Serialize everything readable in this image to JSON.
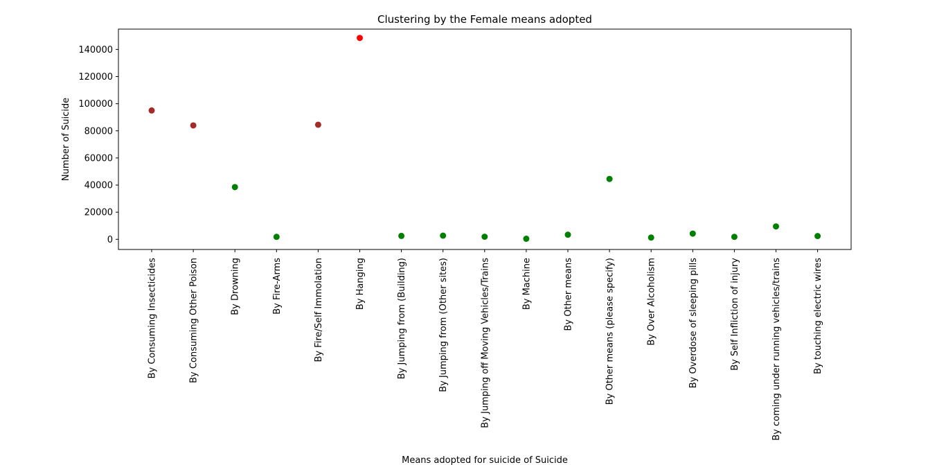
{
  "chart_data": {
    "type": "scatter",
    "title": "Clustering by the Female means adopted",
    "xlabel": "Means adopted for suicide of Suicide",
    "ylabel": "Number of Suicide",
    "ylim": [
      -7500,
      155000
    ],
    "yticks": [
      0,
      20000,
      40000,
      60000,
      80000,
      100000,
      120000,
      140000
    ],
    "grid": false,
    "categories": [
      "By Consuming Insecticides",
      "By Consuming Other Poison",
      "By Drowning",
      "By Fire-Arms",
      "By Fire/Self Immolation",
      "By Hanging",
      "By Jumping from (Building)",
      "By Jumping from (Other sites)",
      "By Jumping off Moving Vehicles/Trains",
      "By Machine",
      "By Other means",
      "By Other means (please specify)",
      "By Over Alcoholism",
      "By Overdose of sleeping pills",
      "By Self Infliction of injury",
      "By coming under running vehicles/trains",
      "By touching electric wires"
    ],
    "values": [
      95000,
      84000,
      38500,
      1800,
      84500,
      148500,
      2500,
      2700,
      1900,
      400,
      3400,
      44500,
      1300,
      4200,
      1800,
      9500,
      2400
    ],
    "point_colors": [
      "#a52a2a",
      "#a52a2a",
      "#008000",
      "#008000",
      "#a52a2a",
      "#ff0000",
      "#008000",
      "#008000",
      "#008000",
      "#008000",
      "#008000",
      "#008000",
      "#008000",
      "#008000",
      "#008000",
      "#008000",
      "#008000"
    ]
  }
}
